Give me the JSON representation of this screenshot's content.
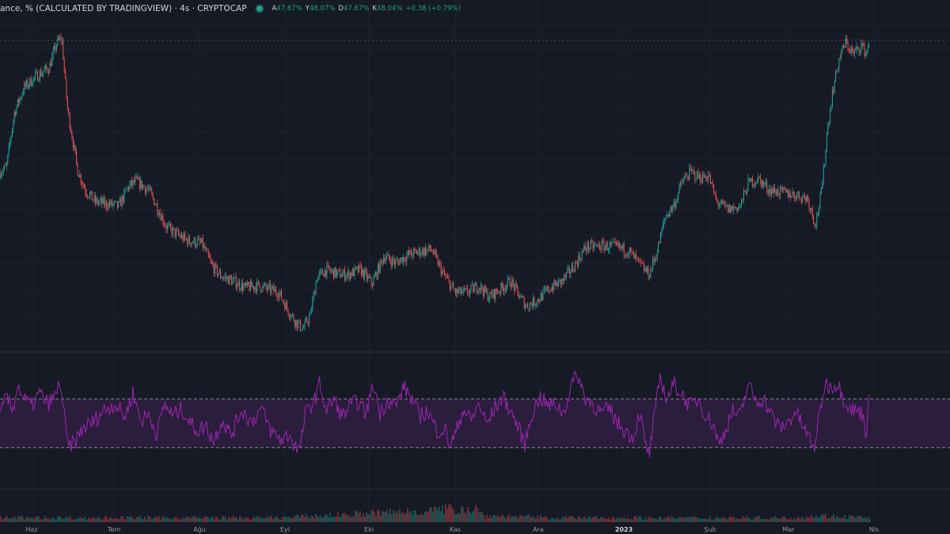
{
  "header": {
    "title": "ance, % (CALCULATED BY TRADINGVIEW) · 4s · CRYPTOCAP",
    "ohlc": [
      {
        "key": "A",
        "value": "47.67%"
      },
      {
        "key": "Y",
        "value": "48.07%"
      },
      {
        "key": "D",
        "value": "47.67%"
      },
      {
        "key": "K",
        "value": "48.04%"
      },
      {
        "key": "",
        "value": "+0.38 (+0.79%)"
      }
    ]
  },
  "colors": {
    "background": "#161a25",
    "up": "#26a69a",
    "down": "#ef5350",
    "rsi_line": "#9c27b0",
    "rsi_band_fill": "#2b1d3c",
    "status_dot": "#1fa187"
  },
  "x_axis_labels": [
    {
      "text": "Haz",
      "bold": false
    },
    {
      "text": "Tem",
      "bold": false
    },
    {
      "text": "Ağu",
      "bold": false
    },
    {
      "text": "Eyl",
      "bold": false
    },
    {
      "text": "Eki",
      "bold": false
    },
    {
      "text": "Kas",
      "bold": false
    },
    {
      "text": "Ara",
      "bold": false
    },
    {
      "text": "2023",
      "bold": true
    },
    {
      "text": "Şub",
      "bold": false
    },
    {
      "text": "Mar",
      "bold": false
    },
    {
      "text": "Nis",
      "bold": false
    }
  ],
  "chart_data": [
    {
      "type": "candlestick",
      "title": "",
      "y_axis_visible": false,
      "price_path": [
        [
          0,
          46.88
        ],
        [
          8,
          46.92
        ],
        [
          18,
          47.4
        ],
        [
          30,
          47.62
        ],
        [
          45,
          47.72
        ],
        [
          62,
          47.8
        ],
        [
          72,
          48.02
        ],
        [
          78,
          48.06
        ],
        [
          85,
          47.45
        ],
        [
          98,
          46.9
        ],
        [
          108,
          46.72
        ],
        [
          120,
          46.62
        ],
        [
          135,
          46.6
        ],
        [
          150,
          46.58
        ],
        [
          162,
          46.75
        ],
        [
          172,
          46.8
        ],
        [
          188,
          46.72
        ],
        [
          200,
          46.55
        ],
        [
          210,
          46.4
        ],
        [
          220,
          46.35
        ],
        [
          235,
          46.28
        ],
        [
          255,
          46.25
        ],
        [
          268,
          46.05
        ],
        [
          280,
          45.96
        ],
        [
          295,
          45.92
        ],
        [
          310,
          45.86
        ],
        [
          325,
          45.88
        ],
        [
          340,
          45.85
        ],
        [
          352,
          45.82
        ],
        [
          365,
          45.65
        ],
        [
          375,
          45.55
        ],
        [
          383,
          45.5
        ],
        [
          392,
          45.62
        ],
        [
          400,
          45.95
        ],
        [
          412,
          46.02
        ],
        [
          428,
          45.98
        ],
        [
          440,
          45.98
        ],
        [
          455,
          46.02
        ],
        [
          470,
          45.9
        ],
        [
          485,
          46.14
        ],
        [
          500,
          46.08
        ],
        [
          515,
          46.15
        ],
        [
          530,
          46.18
        ],
        [
          545,
          46.2
        ],
        [
          560,
          45.98
        ],
        [
          575,
          45.82
        ],
        [
          590,
          45.82
        ],
        [
          605,
          45.88
        ],
        [
          618,
          45.78
        ],
        [
          630,
          45.84
        ],
        [
          645,
          45.92
        ],
        [
          655,
          45.8
        ],
        [
          665,
          45.7
        ],
        [
          680,
          45.76
        ],
        [
          695,
          45.86
        ],
        [
          710,
          45.92
        ],
        [
          725,
          46.05
        ],
        [
          740,
          46.22
        ],
        [
          760,
          46.23
        ],
        [
          780,
          46.22
        ],
        [
          795,
          46.18
        ],
        [
          810,
          46.05
        ],
        [
          820,
          45.98
        ],
        [
          830,
          46.18
        ],
        [
          840,
          46.48
        ],
        [
          852,
          46.6
        ],
        [
          862,
          46.8
        ],
        [
          872,
          46.88
        ],
        [
          885,
          46.83
        ],
        [
          895,
          46.85
        ],
        [
          905,
          46.62
        ],
        [
          920,
          46.55
        ],
        [
          935,
          46.58
        ],
        [
          945,
          46.78
        ],
        [
          958,
          46.82
        ],
        [
          972,
          46.72
        ],
        [
          988,
          46.7
        ],
        [
          1005,
          46.68
        ],
        [
          1020,
          46.65
        ],
        [
          1030,
          46.42
        ],
        [
          1038,
          46.72
        ],
        [
          1045,
          47.25
        ],
        [
          1052,
          47.6
        ],
        [
          1060,
          47.88
        ],
        [
          1068,
          48.02
        ],
        [
          1078,
          47.92
        ],
        [
          1088,
          48.0
        ],
        [
          1094,
          47.92
        ],
        [
          1098,
          48.04
        ]
      ],
      "volume": [
        [
          0,
          1
        ],
        [
          80,
          1
        ],
        [
          300,
          1
        ],
        [
          350,
          1
        ],
        [
          600,
          3.2
        ],
        [
          610,
          1.5
        ],
        [
          700,
          1
        ],
        [
          760,
          1
        ],
        [
          900,
          1
        ],
        [
          1000,
          1
        ],
        [
          1040,
          1.5
        ],
        [
          1098,
          1
        ]
      ]
    },
    {
      "type": "line",
      "title": "",
      "name": "",
      "ylim": [
        0,
        100
      ],
      "bands": [
        70,
        30
      ],
      "rsi_path": [
        [
          0,
          55
        ],
        [
          8,
          72
        ],
        [
          16,
          60
        ],
        [
          22,
          82
        ],
        [
          30,
          70
        ],
        [
          40,
          64
        ],
        [
          50,
          75
        ],
        [
          60,
          66
        ],
        [
          70,
          72
        ],
        [
          76,
          85
        ],
        [
          80,
          62
        ],
        [
          86,
          30
        ],
        [
          95,
          35
        ],
        [
          105,
          46
        ],
        [
          118,
          51
        ],
        [
          130,
          60
        ],
        [
          145,
          66
        ],
        [
          158,
          55
        ],
        [
          168,
          75
        ],
        [
          178,
          52
        ],
        [
          188,
          57
        ],
        [
          198,
          42
        ],
        [
          208,
          66
        ],
        [
          218,
          56
        ],
        [
          230,
          62
        ],
        [
          240,
          50
        ],
        [
          250,
          44
        ],
        [
          260,
          48
        ],
        [
          270,
          35
        ],
        [
          280,
          53
        ],
        [
          292,
          40
        ],
        [
          305,
          61
        ],
        [
          318,
          51
        ],
        [
          330,
          62
        ],
        [
          342,
          44
        ],
        [
          355,
          36
        ],
        [
          365,
          41
        ],
        [
          372,
          32
        ],
        [
          378,
          27
        ],
        [
          386,
          58
        ],
        [
          398,
          70
        ],
        [
          404,
          83
        ],
        [
          412,
          60
        ],
        [
          422,
          70
        ],
        [
          432,
          55
        ],
        [
          442,
          64
        ],
        [
          452,
          68
        ],
        [
          462,
          58
        ],
        [
          472,
          82
        ],
        [
          480,
          58
        ],
        [
          490,
          70
        ],
        [
          500,
          64
        ],
        [
          510,
          80
        ],
        [
          520,
          70
        ],
        [
          530,
          56
        ],
        [
          540,
          60
        ],
        [
          552,
          44
        ],
        [
          562,
          45
        ],
        [
          568,
          32
        ],
        [
          575,
          40
        ],
        [
          585,
          62
        ],
        [
          595,
          52
        ],
        [
          605,
          66
        ],
        [
          615,
          49
        ],
        [
          625,
          62
        ],
        [
          635,
          72
        ],
        [
          645,
          60
        ],
        [
          655,
          46
        ],
        [
          663,
          33
        ],
        [
          672,
          58
        ],
        [
          682,
          72
        ],
        [
          692,
          64
        ],
        [
          702,
          66
        ],
        [
          712,
          58
        ],
        [
          722,
          82
        ],
        [
          730,
          90
        ],
        [
          738,
          72
        ],
        [
          748,
          66
        ],
        [
          760,
          58
        ],
        [
          770,
          62
        ],
        [
          780,
          50
        ],
        [
          790,
          44
        ],
        [
          800,
          38
        ],
        [
          808,
          60
        ],
        [
          815,
          32
        ],
        [
          820,
          24
        ],
        [
          826,
          52
        ],
        [
          834,
          88
        ],
        [
          842,
          70
        ],
        [
          852,
          82
        ],
        [
          862,
          73
        ],
        [
          872,
          64
        ],
        [
          882,
          70
        ],
        [
          892,
          56
        ],
        [
          902,
          48
        ],
        [
          908,
          32
        ],
        [
          916,
          44
        ],
        [
          925,
          60
        ],
        [
          935,
          55
        ],
        [
          945,
          82
        ],
        [
          955,
          68
        ],
        [
          965,
          70
        ],
        [
          975,
          56
        ],
        [
          985,
          46
        ],
        [
          995,
          50
        ],
        [
          1005,
          60
        ],
        [
          1015,
          46
        ],
        [
          1022,
          38
        ],
        [
          1028,
          28
        ],
        [
          1034,
          52
        ],
        [
          1042,
          82
        ],
        [
          1050,
          80
        ],
        [
          1058,
          83
        ],
        [
          1066,
          70
        ],
        [
          1074,
          62
        ],
        [
          1082,
          60
        ],
        [
          1090,
          58
        ],
        [
          1094,
          42
        ],
        [
          1098,
          70
        ]
      ]
    }
  ]
}
